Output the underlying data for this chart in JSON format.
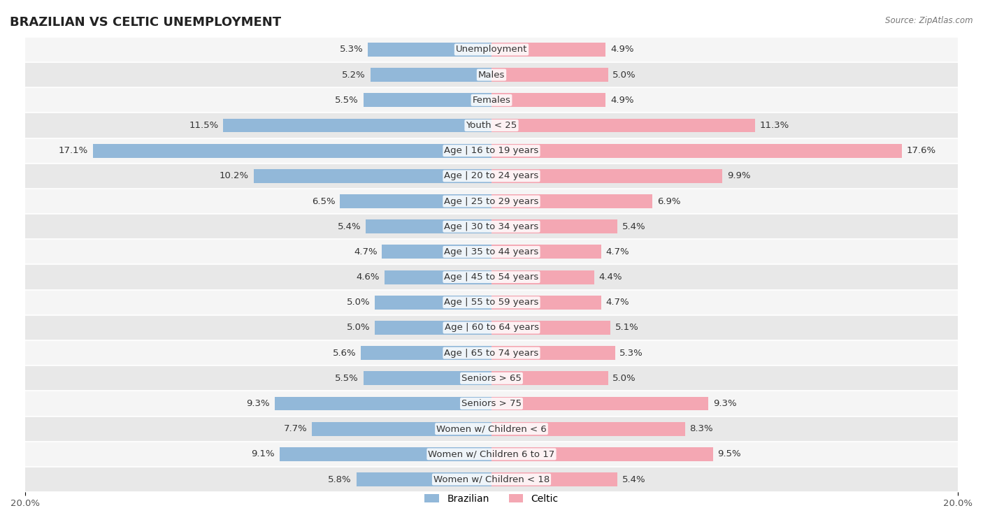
{
  "title": "BRAZILIAN VS CELTIC UNEMPLOYMENT",
  "source": "Source: ZipAtlas.com",
  "categories": [
    "Unemployment",
    "Males",
    "Females",
    "Youth < 25",
    "Age | 16 to 19 years",
    "Age | 20 to 24 years",
    "Age | 25 to 29 years",
    "Age | 30 to 34 years",
    "Age | 35 to 44 years",
    "Age | 45 to 54 years",
    "Age | 55 to 59 years",
    "Age | 60 to 64 years",
    "Age | 65 to 74 years",
    "Seniors > 65",
    "Seniors > 75",
    "Women w/ Children < 6",
    "Women w/ Children 6 to 17",
    "Women w/ Children < 18"
  ],
  "brazilian": [
    5.3,
    5.2,
    5.5,
    11.5,
    17.1,
    10.2,
    6.5,
    5.4,
    4.7,
    4.6,
    5.0,
    5.0,
    5.6,
    5.5,
    9.3,
    7.7,
    9.1,
    5.8
  ],
  "celtic": [
    4.9,
    5.0,
    4.9,
    11.3,
    17.6,
    9.9,
    6.9,
    5.4,
    4.7,
    4.4,
    4.7,
    5.1,
    5.3,
    5.0,
    9.3,
    8.3,
    9.5,
    5.4
  ],
  "max_val": 20.0,
  "brazilian_color": "#92b8d9",
  "celtic_color": "#f4a7b3",
  "row_bg_light": "#f5f5f5",
  "row_bg_dark": "#e8e8e8",
  "bar_height": 0.55,
  "label_fontsize": 9.5,
  "title_fontsize": 13,
  "legend_fontsize": 10
}
